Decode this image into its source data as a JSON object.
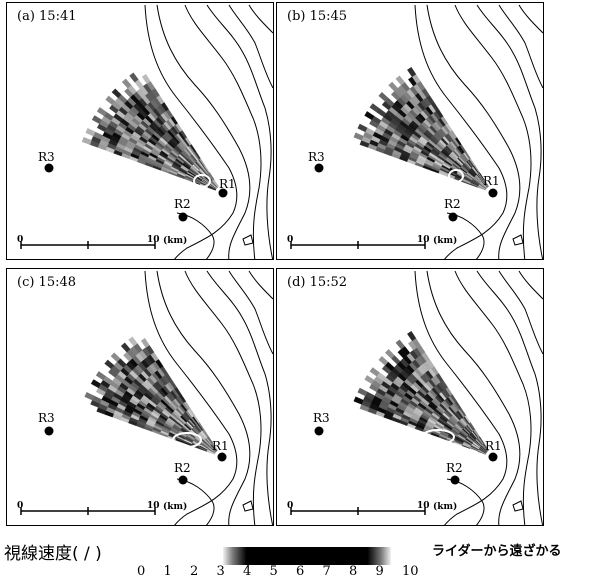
{
  "panels": [
    {
      "label": "(a) 15:41"
    },
    {
      "label": "(b) 15:45"
    },
    {
      "label": "(c) 15:48"
    },
    {
      "label": "(d) 15:52"
    }
  ],
  "sites": {
    "r1": "R1",
    "r2": "R2",
    "r3": "R3"
  },
  "scale": {
    "start": "0",
    "end": "10",
    "unit": "(km)"
  },
  "legend": {
    "title": "視線速度( / )",
    "note": "ライダーから遠ざかる",
    "ticks": [
      "0",
      "1",
      "2",
      "3",
      "4",
      "5",
      "6",
      "7",
      "8",
      "9",
      "10"
    ]
  },
  "colors": {
    "land_outline": "#000000",
    "echo_dark": "#111111",
    "echo_light": "#e0e0e0",
    "feature_ellipse": "#ffffff"
  }
}
